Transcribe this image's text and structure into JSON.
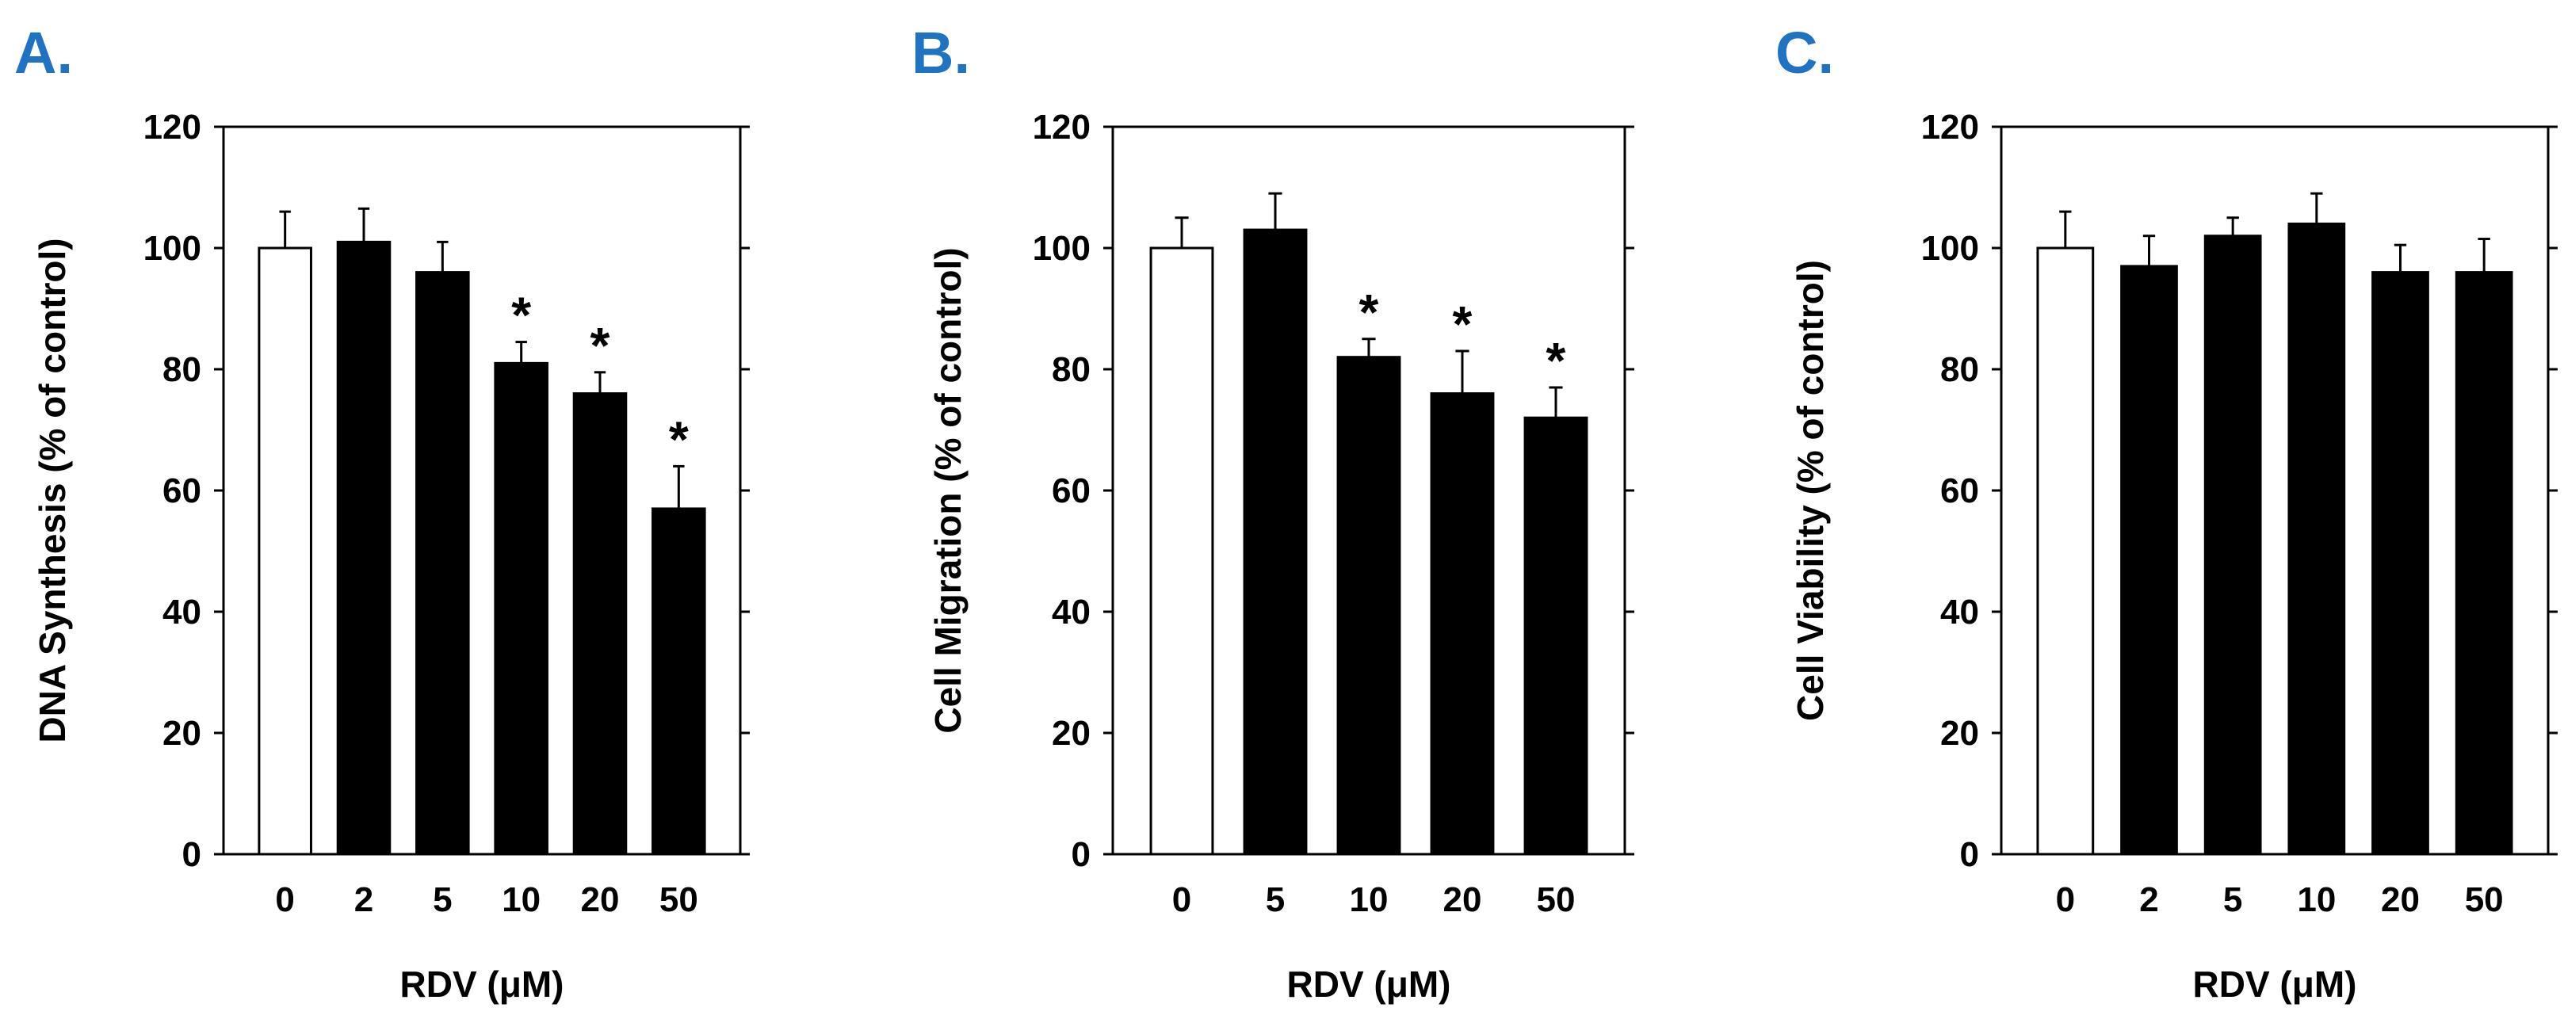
{
  "colors": {
    "panel_letter": "#1F73C2",
    "bar_control": "#ffffff",
    "bar_treated": "#000000",
    "axis": "#000000"
  },
  "chart_data": [
    {
      "panel_label": "A.",
      "type": "bar",
      "categories": [
        "0",
        "2",
        "5",
        "10",
        "20",
        "50"
      ],
      "values": [
        100,
        101,
        96,
        81,
        76,
        57
      ],
      "errors": [
        6,
        5.5,
        5,
        3.5,
        3.5,
        7
      ],
      "significant": [
        "",
        "",
        "",
        "*",
        "*",
        "*"
      ],
      "xlabel": "RDV (μM)",
      "ylabel": "DNA Synthesis (% of control)",
      "ylim": [
        0,
        120
      ],
      "yticks": [
        "0",
        "20",
        "40",
        "60",
        "80",
        "100",
        "120"
      ],
      "control_index": 0
    },
    {
      "panel_label": "B.",
      "type": "bar",
      "categories": [
        "0",
        "5",
        "10",
        "20",
        "50"
      ],
      "values": [
        100,
        103,
        82,
        76,
        72
      ],
      "errors": [
        5,
        6,
        3,
        7,
        5
      ],
      "significant": [
        "",
        "",
        "*",
        "*",
        "*"
      ],
      "xlabel": "RDV (μM)",
      "ylabel": "Cell Migration (% of control)",
      "ylim": [
        0,
        120
      ],
      "yticks": [
        "0",
        "20",
        "40",
        "60",
        "80",
        "100",
        "120"
      ],
      "control_index": 0
    },
    {
      "panel_label": "C.",
      "type": "bar",
      "categories": [
        "0",
        "2",
        "5",
        "10",
        "20",
        "50"
      ],
      "values": [
        100,
        97,
        102,
        104,
        96,
        96
      ],
      "errors": [
        6,
        5,
        3,
        5,
        4.5,
        5.5
      ],
      "significant": [
        "",
        "",
        "",
        "",
        "",
        ""
      ],
      "xlabel": "RDV (μM)",
      "ylabel": "Cell Viability (% of control)",
      "ylim": [
        0,
        120
      ],
      "yticks": [
        "0",
        "20",
        "40",
        "60",
        "80",
        "100",
        "120"
      ],
      "control_index": 0
    }
  ]
}
